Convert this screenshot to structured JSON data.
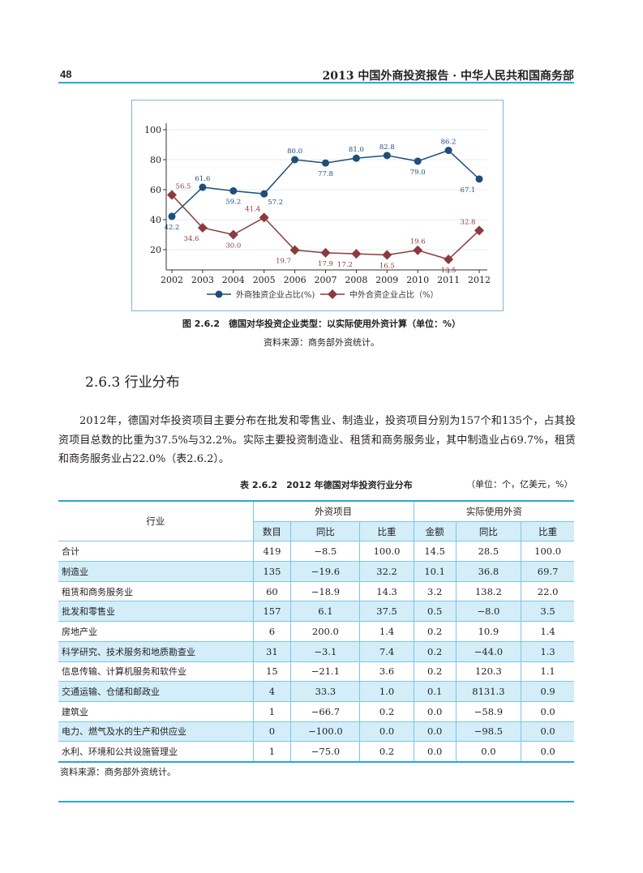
{
  "header": {
    "page_number": "48",
    "running_title": "2013 中国外商投资报告 · 中华人民共和国商务部"
  },
  "figure": {
    "caption": "图 2.6.2　德国对华投资企业类型：以实际使用外资计算（单位：%）",
    "source": "资料来源：商务部外资统计。"
  },
  "chart_data": {
    "type": "line",
    "x": [
      "2002",
      "2003",
      "2004",
      "2005",
      "2006",
      "2007",
      "2008",
      "2009",
      "2010",
      "2011",
      "2012"
    ],
    "ylim": [
      0,
      100
    ],
    "yticks": [
      "20",
      "40",
      "60",
      "80",
      "100"
    ],
    "grid": true,
    "legend_position": "bottom",
    "series": [
      {
        "name": "外商独资企业占比(%)",
        "color": "#1f4e79",
        "marker": "circle",
        "values": [
          42.2,
          61.6,
          59.2,
          57.2,
          80.0,
          77.8,
          81.0,
          82.8,
          79.0,
          86.2,
          67.1
        ]
      },
      {
        "name": "中外合资企业占比（%）",
        "color": "#8b3a3e",
        "marker": "diamond",
        "values": [
          56.5,
          34.6,
          30.0,
          41.4,
          19.7,
          17.9,
          17.2,
          16.5,
          19.6,
          13.5,
          32.8
        ]
      }
    ]
  },
  "section": {
    "title": "2.6.3 行业分布"
  },
  "paragraph": "2012年，德国对华投资项目主要分布在批发和零售业、制造业，投资项目分别为157个和135个，占其投资项目总数的比重为37.5%与32.2%。实际主要投资制造业、租赁和商务服务业，其中制造业占69.7%，租赁和商务服务业占22.0%（表2.6.2）。",
  "table": {
    "title": "表 2.6.2　2012 年德国对华投资行业分布",
    "unit": "（单位：个，亿美元，%）",
    "header_industry": "行业",
    "group1": "外资项目",
    "group2": "实际使用外资",
    "subheaders": [
      "数目",
      "同比",
      "比重",
      "金额",
      "同比",
      "比重"
    ],
    "rows": [
      [
        "合计",
        "419",
        "−8.5",
        "100.0",
        "14.5",
        "28.5",
        "100.0"
      ],
      [
        "制造业",
        "135",
        "−19.6",
        "32.2",
        "10.1",
        "36.8",
        "69.7"
      ],
      [
        "租赁和商务服务业",
        "60",
        "−18.9",
        "14.3",
        "3.2",
        "138.2",
        "22.0"
      ],
      [
        "批发和零售业",
        "157",
        "6.1",
        "37.5",
        "0.5",
        "−8.0",
        "3.5"
      ],
      [
        "房地产业",
        "6",
        "200.0",
        "1.4",
        "0.2",
        "10.9",
        "1.4"
      ],
      [
        "科学研究、技术服务和地质勘查业",
        "31",
        "−3.1",
        "7.4",
        "0.2",
        "−44.0",
        "1.3"
      ],
      [
        "信息传输、计算机服务和软件业",
        "15",
        "−21.1",
        "3.6",
        "0.2",
        "120.3",
        "1.1"
      ],
      [
        "交通运输、仓储和邮政业",
        "4",
        "33.3",
        "1.0",
        "0.1",
        "8131.3",
        "0.9"
      ],
      [
        "建筑业",
        "1",
        "−66.7",
        "0.2",
        "0.0",
        "−58.9",
        "0.0"
      ],
      [
        "电力、燃气及水的生产和供应业",
        "0",
        "−100.0",
        "0.0",
        "0.0",
        "−98.5",
        "0.0"
      ],
      [
        "水利、环境和公共设施管理业",
        "1",
        "−75.0",
        "0.2",
        "0.0",
        "0.0",
        "0.0"
      ]
    ],
    "source": "资料来源：商务部外资统计。"
  }
}
